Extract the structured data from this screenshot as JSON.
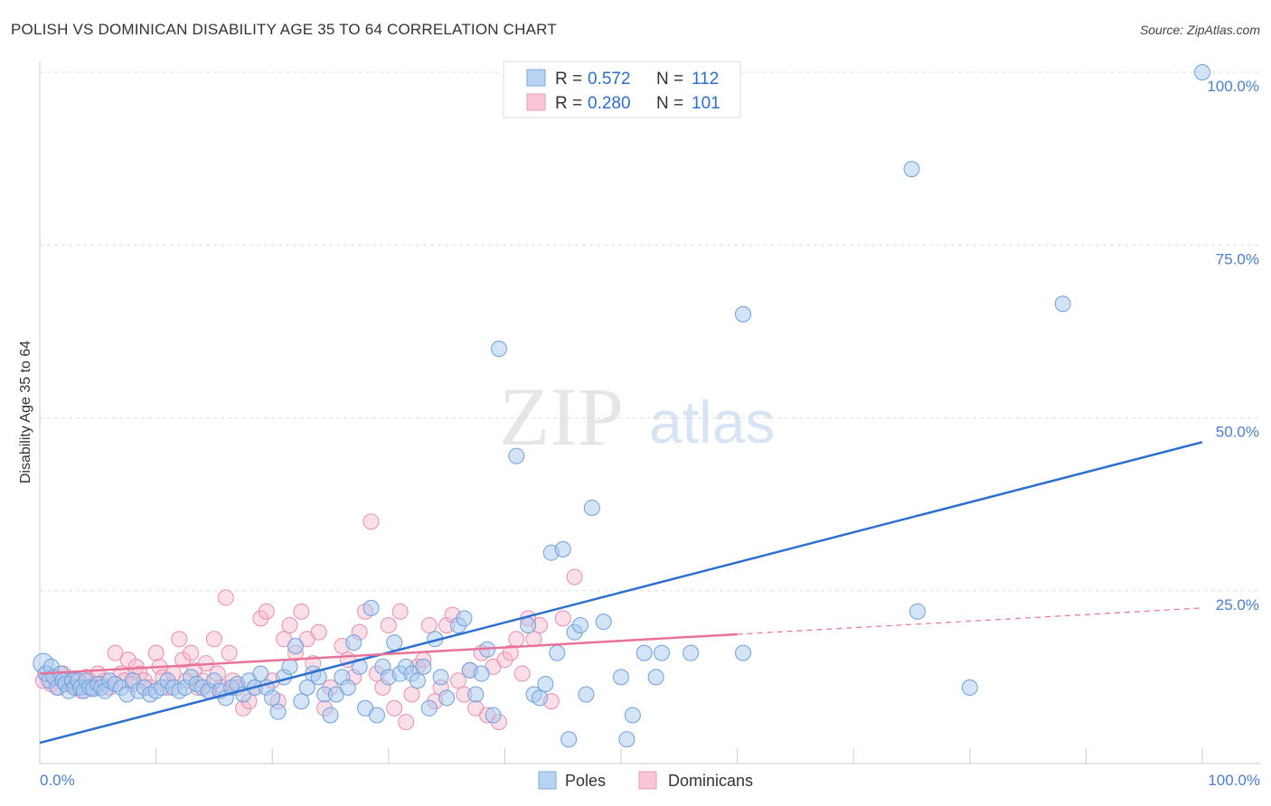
{
  "header": {
    "title": "POLISH VS DOMINICAN DISABILITY AGE 35 TO 64 CORRELATION CHART",
    "source": "Source: ZipAtlas.com"
  },
  "watermark": {
    "zip": "ZIP",
    "atlas": "atlas"
  },
  "legend_top": {
    "poles": {
      "r_label": "R =",
      "r_value": "0.572",
      "n_label": "N =",
      "n_value": "112"
    },
    "dominicans": {
      "r_label": "R =",
      "r_value": "0.280",
      "n_label": "N =",
      "n_value": "101"
    }
  },
  "legend_bottom": {
    "poles": "Poles",
    "dominicans": "Dominicans"
  },
  "colors": {
    "poles_fill": "#a9c9ef",
    "poles_stroke": "#6fa0dc",
    "poles_line": "#2b6fd1",
    "dom_fill": "#f7b8cb",
    "dom_stroke": "#ea8eaa",
    "dom_line": "#e8729a",
    "axis_label": "#4a7fd0",
    "grid": "#dddddd"
  },
  "chart_data": {
    "type": "scatter",
    "title": "POLISH VS DOMINICAN DISABILITY AGE 35 TO 64 CORRELATION CHART",
    "xlabel": "",
    "ylabel": "Disability Age 35 to 64",
    "xlim": [
      0,
      100
    ],
    "ylim": [
      0,
      100
    ],
    "x_tick_labels": [
      "0.0%",
      "100.0%"
    ],
    "y_tick_labels": [
      "25.0%",
      "50.0%",
      "75.0%",
      "100.0%"
    ],
    "y_ticks": [
      25,
      50,
      75,
      100
    ],
    "series": [
      {
        "name": "Poles",
        "R": 0.572,
        "N": 112,
        "trend": {
          "x": [
            0,
            100
          ],
          "y": [
            3,
            46.5
          ],
          "dashed_from": null
        },
        "points": [
          [
            0.3,
            14.5
          ],
          [
            0.5,
            13
          ],
          [
            0.8,
            12
          ],
          [
            1,
            14
          ],
          [
            1.2,
            12.5
          ],
          [
            1.5,
            11
          ],
          [
            1.8,
            13
          ],
          [
            2,
            12
          ],
          [
            2.2,
            11.5
          ],
          [
            2.5,
            10.5
          ],
          [
            2.8,
            12
          ],
          [
            3,
            11
          ],
          [
            3.3,
            12
          ],
          [
            3.5,
            11
          ],
          [
            3.8,
            10.5
          ],
          [
            4,
            12
          ],
          [
            4.3,
            11
          ],
          [
            4.6,
            10.8
          ],
          [
            5,
            11.5
          ],
          [
            5.3,
            11
          ],
          [
            5.6,
            10.5
          ],
          [
            6,
            12
          ],
          [
            6.5,
            11.5
          ],
          [
            7,
            11
          ],
          [
            7.5,
            10
          ],
          [
            8,
            12
          ],
          [
            8.5,
            10.5
          ],
          [
            9,
            11
          ],
          [
            9.5,
            10
          ],
          [
            10,
            10.5
          ],
          [
            10.5,
            11
          ],
          [
            11,
            12
          ],
          [
            11.5,
            11
          ],
          [
            12,
            10.5
          ],
          [
            12.5,
            11
          ],
          [
            13,
            12.5
          ],
          [
            13.5,
            11.5
          ],
          [
            14,
            11
          ],
          [
            14.5,
            10.5
          ],
          [
            15,
            12
          ],
          [
            15.5,
            10.5
          ],
          [
            16,
            9.5
          ],
          [
            16.5,
            11
          ],
          [
            17,
            11.5
          ],
          [
            17.5,
            10
          ],
          [
            18,
            12
          ],
          [
            18.5,
            11
          ],
          [
            19,
            13
          ],
          [
            19.5,
            11
          ],
          [
            20,
            9.5
          ],
          [
            20.5,
            7.5
          ],
          [
            21,
            12.5
          ],
          [
            21.5,
            14
          ],
          [
            22,
            17
          ],
          [
            22.5,
            9
          ],
          [
            23,
            11
          ],
          [
            23.5,
            13
          ],
          [
            24,
            12.5
          ],
          [
            24.5,
            10
          ],
          [
            25,
            7
          ],
          [
            25.5,
            10
          ],
          [
            26,
            12.5
          ],
          [
            26.5,
            11
          ],
          [
            27,
            17.5
          ],
          [
            27.5,
            14
          ],
          [
            28,
            8
          ],
          [
            28.5,
            22.5
          ],
          [
            29,
            7
          ],
          [
            29.5,
            14
          ],
          [
            30,
            12.5
          ],
          [
            30.5,
            17.5
          ],
          [
            31,
            13
          ],
          [
            31.5,
            14
          ],
          [
            32,
            13
          ],
          [
            32.5,
            12
          ],
          [
            33,
            14
          ],
          [
            33.5,
            8
          ],
          [
            34,
            18
          ],
          [
            34.5,
            12.5
          ],
          [
            35,
            9.5
          ],
          [
            36,
            20
          ],
          [
            36.5,
            21
          ],
          [
            37,
            13.5
          ],
          [
            37.5,
            10
          ],
          [
            38,
            13
          ],
          [
            38.5,
            16.5
          ],
          [
            39,
            7
          ],
          [
            39.5,
            60
          ],
          [
            41,
            44.5
          ],
          [
            42,
            20
          ],
          [
            42.5,
            10
          ],
          [
            43,
            9.5
          ],
          [
            43.5,
            11.5
          ],
          [
            44,
            30.5
          ],
          [
            44.5,
            16
          ],
          [
            45,
            31
          ],
          [
            45.5,
            3.5
          ],
          [
            46,
            19
          ],
          [
            46.5,
            20
          ],
          [
            47,
            10
          ],
          [
            47.5,
            37
          ],
          [
            48.5,
            20.5
          ],
          [
            50,
            12.5
          ],
          [
            50.5,
            3.5
          ],
          [
            51,
            7
          ],
          [
            52,
            16
          ],
          [
            53,
            12.5
          ],
          [
            53.5,
            16
          ],
          [
            56,
            16
          ],
          [
            60.5,
            16
          ],
          [
            60.5,
            65
          ],
          [
            75.5,
            22
          ],
          [
            80,
            11
          ],
          [
            75,
            86
          ],
          [
            88,
            66.5
          ],
          [
            100,
            100
          ]
        ]
      },
      {
        "name": "Dominicans",
        "R": 0.28,
        "N": 101,
        "trend": {
          "x": [
            0,
            100
          ],
          "y": [
            13,
            22.5
          ],
          "dashed_from": 60
        },
        "points": [
          [
            0.3,
            12
          ],
          [
            0.6,
            13
          ],
          [
            1,
            11.5
          ],
          [
            1.3,
            12.5
          ],
          [
            1.6,
            11
          ],
          [
            2,
            13
          ],
          [
            2.3,
            12
          ],
          [
            2.6,
            11.5
          ],
          [
            3,
            12
          ],
          [
            3.3,
            11
          ],
          [
            3.6,
            10.5
          ],
          [
            4,
            12.5
          ],
          [
            4.3,
            12
          ],
          [
            4.6,
            11
          ],
          [
            5,
            13
          ],
          [
            5.3,
            11.5
          ],
          [
            5.6,
            12
          ],
          [
            6,
            11
          ],
          [
            6.5,
            16
          ],
          [
            7,
            13
          ],
          [
            7.3,
            12
          ],
          [
            7.6,
            15
          ],
          [
            8,
            11.5
          ],
          [
            8.3,
            14
          ],
          [
            8.6,
            13
          ],
          [
            9,
            12
          ],
          [
            9.5,
            11
          ],
          [
            10,
            16
          ],
          [
            10.3,
            14
          ],
          [
            10.6,
            12.5
          ],
          [
            11,
            11
          ],
          [
            11.5,
            13
          ],
          [
            12,
            18
          ],
          [
            12.3,
            15
          ],
          [
            12.6,
            12
          ],
          [
            13,
            16
          ],
          [
            13.3,
            13.5
          ],
          [
            13.6,
            11
          ],
          [
            14,
            12
          ],
          [
            14.3,
            14.5
          ],
          [
            14.6,
            10.5
          ],
          [
            15,
            18
          ],
          [
            15.3,
            13
          ],
          [
            15.6,
            11
          ],
          [
            16,
            24
          ],
          [
            16.3,
            16
          ],
          [
            16.6,
            12
          ],
          [
            17,
            11
          ],
          [
            17.5,
            8
          ],
          [
            18,
            9
          ],
          [
            18.5,
            11
          ],
          [
            19,
            21
          ],
          [
            19.5,
            22
          ],
          [
            20,
            12
          ],
          [
            20.5,
            9
          ],
          [
            21,
            18
          ],
          [
            21.5,
            20
          ],
          [
            22,
            16
          ],
          [
            22.5,
            22
          ],
          [
            23,
            18
          ],
          [
            23.5,
            14.5
          ],
          [
            24,
            19
          ],
          [
            24.5,
            8
          ],
          [
            25,
            11
          ],
          [
            26,
            17
          ],
          [
            26.5,
            15
          ],
          [
            27,
            12.5
          ],
          [
            27.5,
            19
          ],
          [
            28,
            22
          ],
          [
            28.5,
            35
          ],
          [
            29,
            13
          ],
          [
            29.5,
            11
          ],
          [
            30,
            20
          ],
          [
            30.5,
            8
          ],
          [
            31,
            22
          ],
          [
            31.5,
            6
          ],
          [
            32,
            10
          ],
          [
            32.5,
            14
          ],
          [
            33,
            15
          ],
          [
            33.5,
            20
          ],
          [
            34,
            9
          ],
          [
            34.5,
            11
          ],
          [
            35,
            20
          ],
          [
            35.5,
            21.5
          ],
          [
            36,
            12
          ],
          [
            36.5,
            10
          ],
          [
            37,
            13.5
          ],
          [
            37.5,
            8
          ],
          [
            38,
            16
          ],
          [
            38.5,
            7
          ],
          [
            39,
            14
          ],
          [
            39.5,
            6
          ],
          [
            40,
            15
          ],
          [
            40.5,
            16
          ],
          [
            41,
            18
          ],
          [
            41.5,
            13
          ],
          [
            42,
            21
          ],
          [
            42.5,
            18
          ],
          [
            43,
            20
          ],
          [
            44,
            9
          ],
          [
            45,
            21
          ],
          [
            46,
            27
          ]
        ]
      }
    ]
  }
}
